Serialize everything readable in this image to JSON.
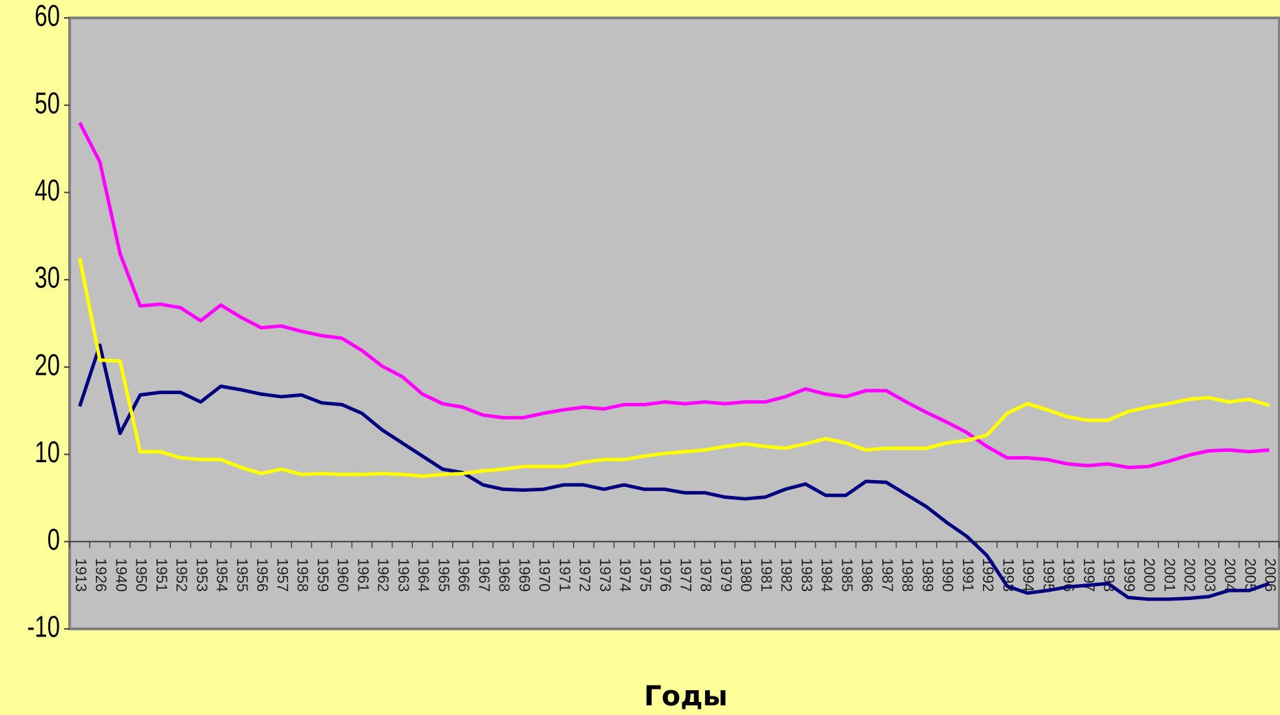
{
  "chart_data": {
    "type": "line",
    "x_label": "Годы",
    "categories": [
      "1913",
      "1926",
      "1940",
      "1950",
      "1951",
      "1952",
      "1953",
      "1954",
      "1955",
      "1956",
      "1957",
      "1958",
      "1959",
      "1960",
      "1961",
      "1962",
      "1963",
      "1964",
      "1965",
      "1966",
      "1967",
      "1968",
      "1969",
      "1970",
      "1971",
      "1972",
      "1973",
      "1974",
      "1975",
      "1976",
      "1977",
      "1978",
      "1979",
      "1980",
      "1981",
      "1982",
      "1983",
      "1984",
      "1985",
      "1986",
      "1987",
      "1988",
      "1989",
      "1990",
      "1991",
      "1992",
      "1993",
      "1994",
      "1995",
      "1996",
      "1997",
      "1998",
      "1999",
      "2000",
      "2001",
      "2002",
      "2003",
      "2004",
      "2005",
      "2006"
    ],
    "series": [
      {
        "color": "#ff00ff",
        "values": [
          48,
          43.5,
          33,
          27,
          27.2,
          26.8,
          25.3,
          27.1,
          25.7,
          24.5,
          24.7,
          24.1,
          23.6,
          23.3,
          21.9,
          20.1,
          18.9,
          16.9,
          15.8,
          15.4,
          14.5,
          14.2,
          14.2,
          14.7,
          15.1,
          15.4,
          15.2,
          15.7,
          15.7,
          16.0,
          15.8,
          16.0,
          15.8,
          16.0,
          16.0,
          16.6,
          17.5,
          16.9,
          16.6,
          17.3,
          17.3,
          16.0,
          14.8,
          13.7,
          12.5,
          10.9,
          9.6,
          9.6,
          9.4,
          8.9,
          8.7,
          8.9,
          8.5,
          8.6,
          9.2,
          9.9,
          10.4,
          10.5,
          10.3,
          10.5
        ]
      },
      {
        "color": "#000080",
        "values": [
          15.5,
          22.5,
          12.4,
          16.8,
          17.1,
          17.1,
          16.0,
          17.8,
          17.4,
          16.9,
          16.6,
          16.8,
          15.9,
          15.7,
          14.7,
          12.8,
          11.3,
          9.8,
          8.3,
          7.9,
          6.5,
          6.0,
          5.9,
          6.0,
          6.5,
          6.5,
          6.0,
          6.5,
          6.0,
          6.0,
          5.6,
          5.6,
          5.1,
          4.9,
          5.1,
          6.0,
          6.6,
          5.3,
          5.3,
          6.9,
          6.8,
          5.4,
          4.0,
          2.2,
          0.6,
          -1.6,
          -5.1,
          -5.9,
          -5.6,
          -5.2,
          -5.0,
          -4.8,
          -6.4,
          -6.6,
          -6.6,
          -6.5,
          -6.3,
          -5.6,
          -5.6,
          -4.8
        ]
      },
      {
        "color": "#ffff00",
        "values": [
          32.5,
          20.8,
          20.7,
          10.3,
          10.3,
          9.6,
          9.4,
          9.4,
          8.5,
          7.8,
          8.3,
          7.7,
          7.8,
          7.7,
          7.7,
          7.8,
          7.7,
          7.5,
          7.7,
          7.8,
          8.1,
          8.3,
          8.6,
          8.6,
          8.6,
          9.1,
          9.4,
          9.4,
          9.8,
          10.1,
          10.3,
          10.5,
          10.9,
          11.2,
          10.9,
          10.7,
          11.2,
          11.8,
          11.3,
          10.5,
          10.7,
          10.7,
          10.7,
          11.3,
          11.6,
          12.2,
          14.7,
          15.8,
          15.1,
          14.3,
          13.9,
          13.9,
          14.9,
          15.4,
          15.8,
          16.3,
          16.5,
          16.0,
          16.3,
          15.6
        ]
      }
    ],
    "ylim": [
      -10,
      60
    ],
    "yticks": [
      -10,
      0,
      10,
      20,
      30,
      40,
      50,
      60
    ],
    "plot_background": "#c0c0c0"
  }
}
